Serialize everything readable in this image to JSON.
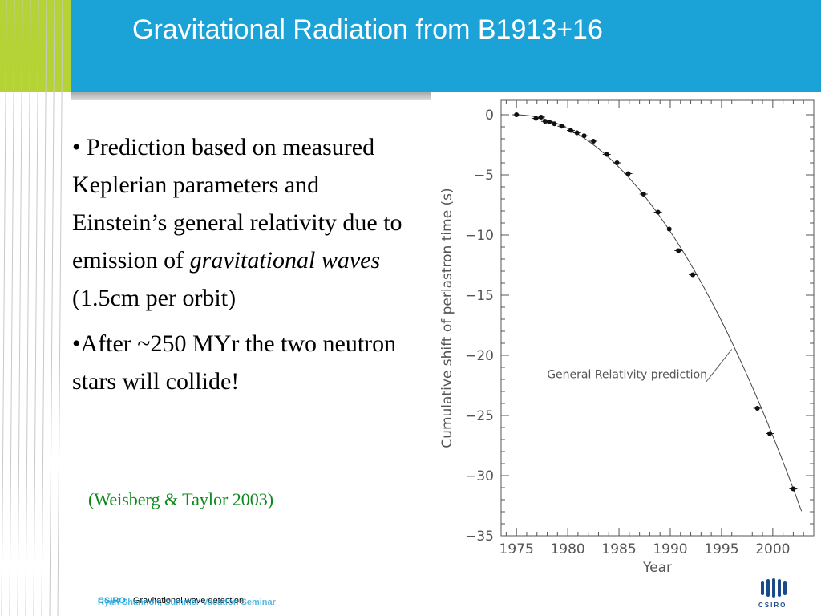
{
  "slide": {
    "title": "Gravitational Radiation from B1913+16",
    "bullet1_lead": "• Prediction based on measured Keplerian parameters and Einstein’s general relativity due to emission of ",
    "bullet1_italic": "gravitational waves",
    "bullet1_tail": " (1.5cm per orbit)",
    "bullet2": "•After ~250 MYr the two neutron stars will collide!",
    "citation": "(Weisberg & Taylor 2003)"
  },
  "footer": {
    "org": "CSIRO.",
    "subject": "Gravitational wave detection",
    "seminar": "Ryan Shannon, Summer Vacation Seminar",
    "logo_text": "CSIRO"
  },
  "colors": {
    "header": "#1ba3d8",
    "accent_green": "#b5d334",
    "citation": "#0b8a1b"
  },
  "chart_data": {
    "type": "scatter",
    "xlabel": "Year",
    "ylabel": "Cumulative shift of periastron time (s)",
    "xlim": [
      1973.5,
      2004
    ],
    "ylim": [
      -35,
      1.2
    ],
    "xticks": [
      1975,
      1980,
      1985,
      1990,
      1995,
      2000
    ],
    "yticks": [
      0,
      -5,
      -10,
      -15,
      -20,
      -25,
      -30,
      -35
    ],
    "annotation": "General Relativity prediction",
    "points": [
      {
        "x": 1975.0,
        "y": 0.0
      },
      {
        "x": 1976.9,
        "y": -0.3
      },
      {
        "x": 1977.4,
        "y": -0.2
      },
      {
        "x": 1977.8,
        "y": -0.55
      },
      {
        "x": 1978.2,
        "y": -0.6
      },
      {
        "x": 1978.7,
        "y": -0.75
      },
      {
        "x": 1979.4,
        "y": -0.95
      },
      {
        "x": 1980.3,
        "y": -1.3
      },
      {
        "x": 1980.9,
        "y": -1.5
      },
      {
        "x": 1981.6,
        "y": -1.75
      },
      {
        "x": 1982.5,
        "y": -2.2
      },
      {
        "x": 1983.8,
        "y": -3.3
      },
      {
        "x": 1984.8,
        "y": -4.0
      },
      {
        "x": 1985.9,
        "y": -4.9
      },
      {
        "x": 1987.4,
        "y": -6.6
      },
      {
        "x": 1988.8,
        "y": -8.1
      },
      {
        "x": 1989.9,
        "y": -9.5
      },
      {
        "x": 1990.8,
        "y": -11.3
      },
      {
        "x": 1992.2,
        "y": -13.3
      },
      {
        "x": 1998.5,
        "y": -24.4
      },
      {
        "x": 1999.7,
        "y": -26.5
      },
      {
        "x": 2002.0,
        "y": -31.1
      }
    ],
    "curve": {
      "start_year": 1974.8,
      "end_year": 2003.0
    }
  }
}
